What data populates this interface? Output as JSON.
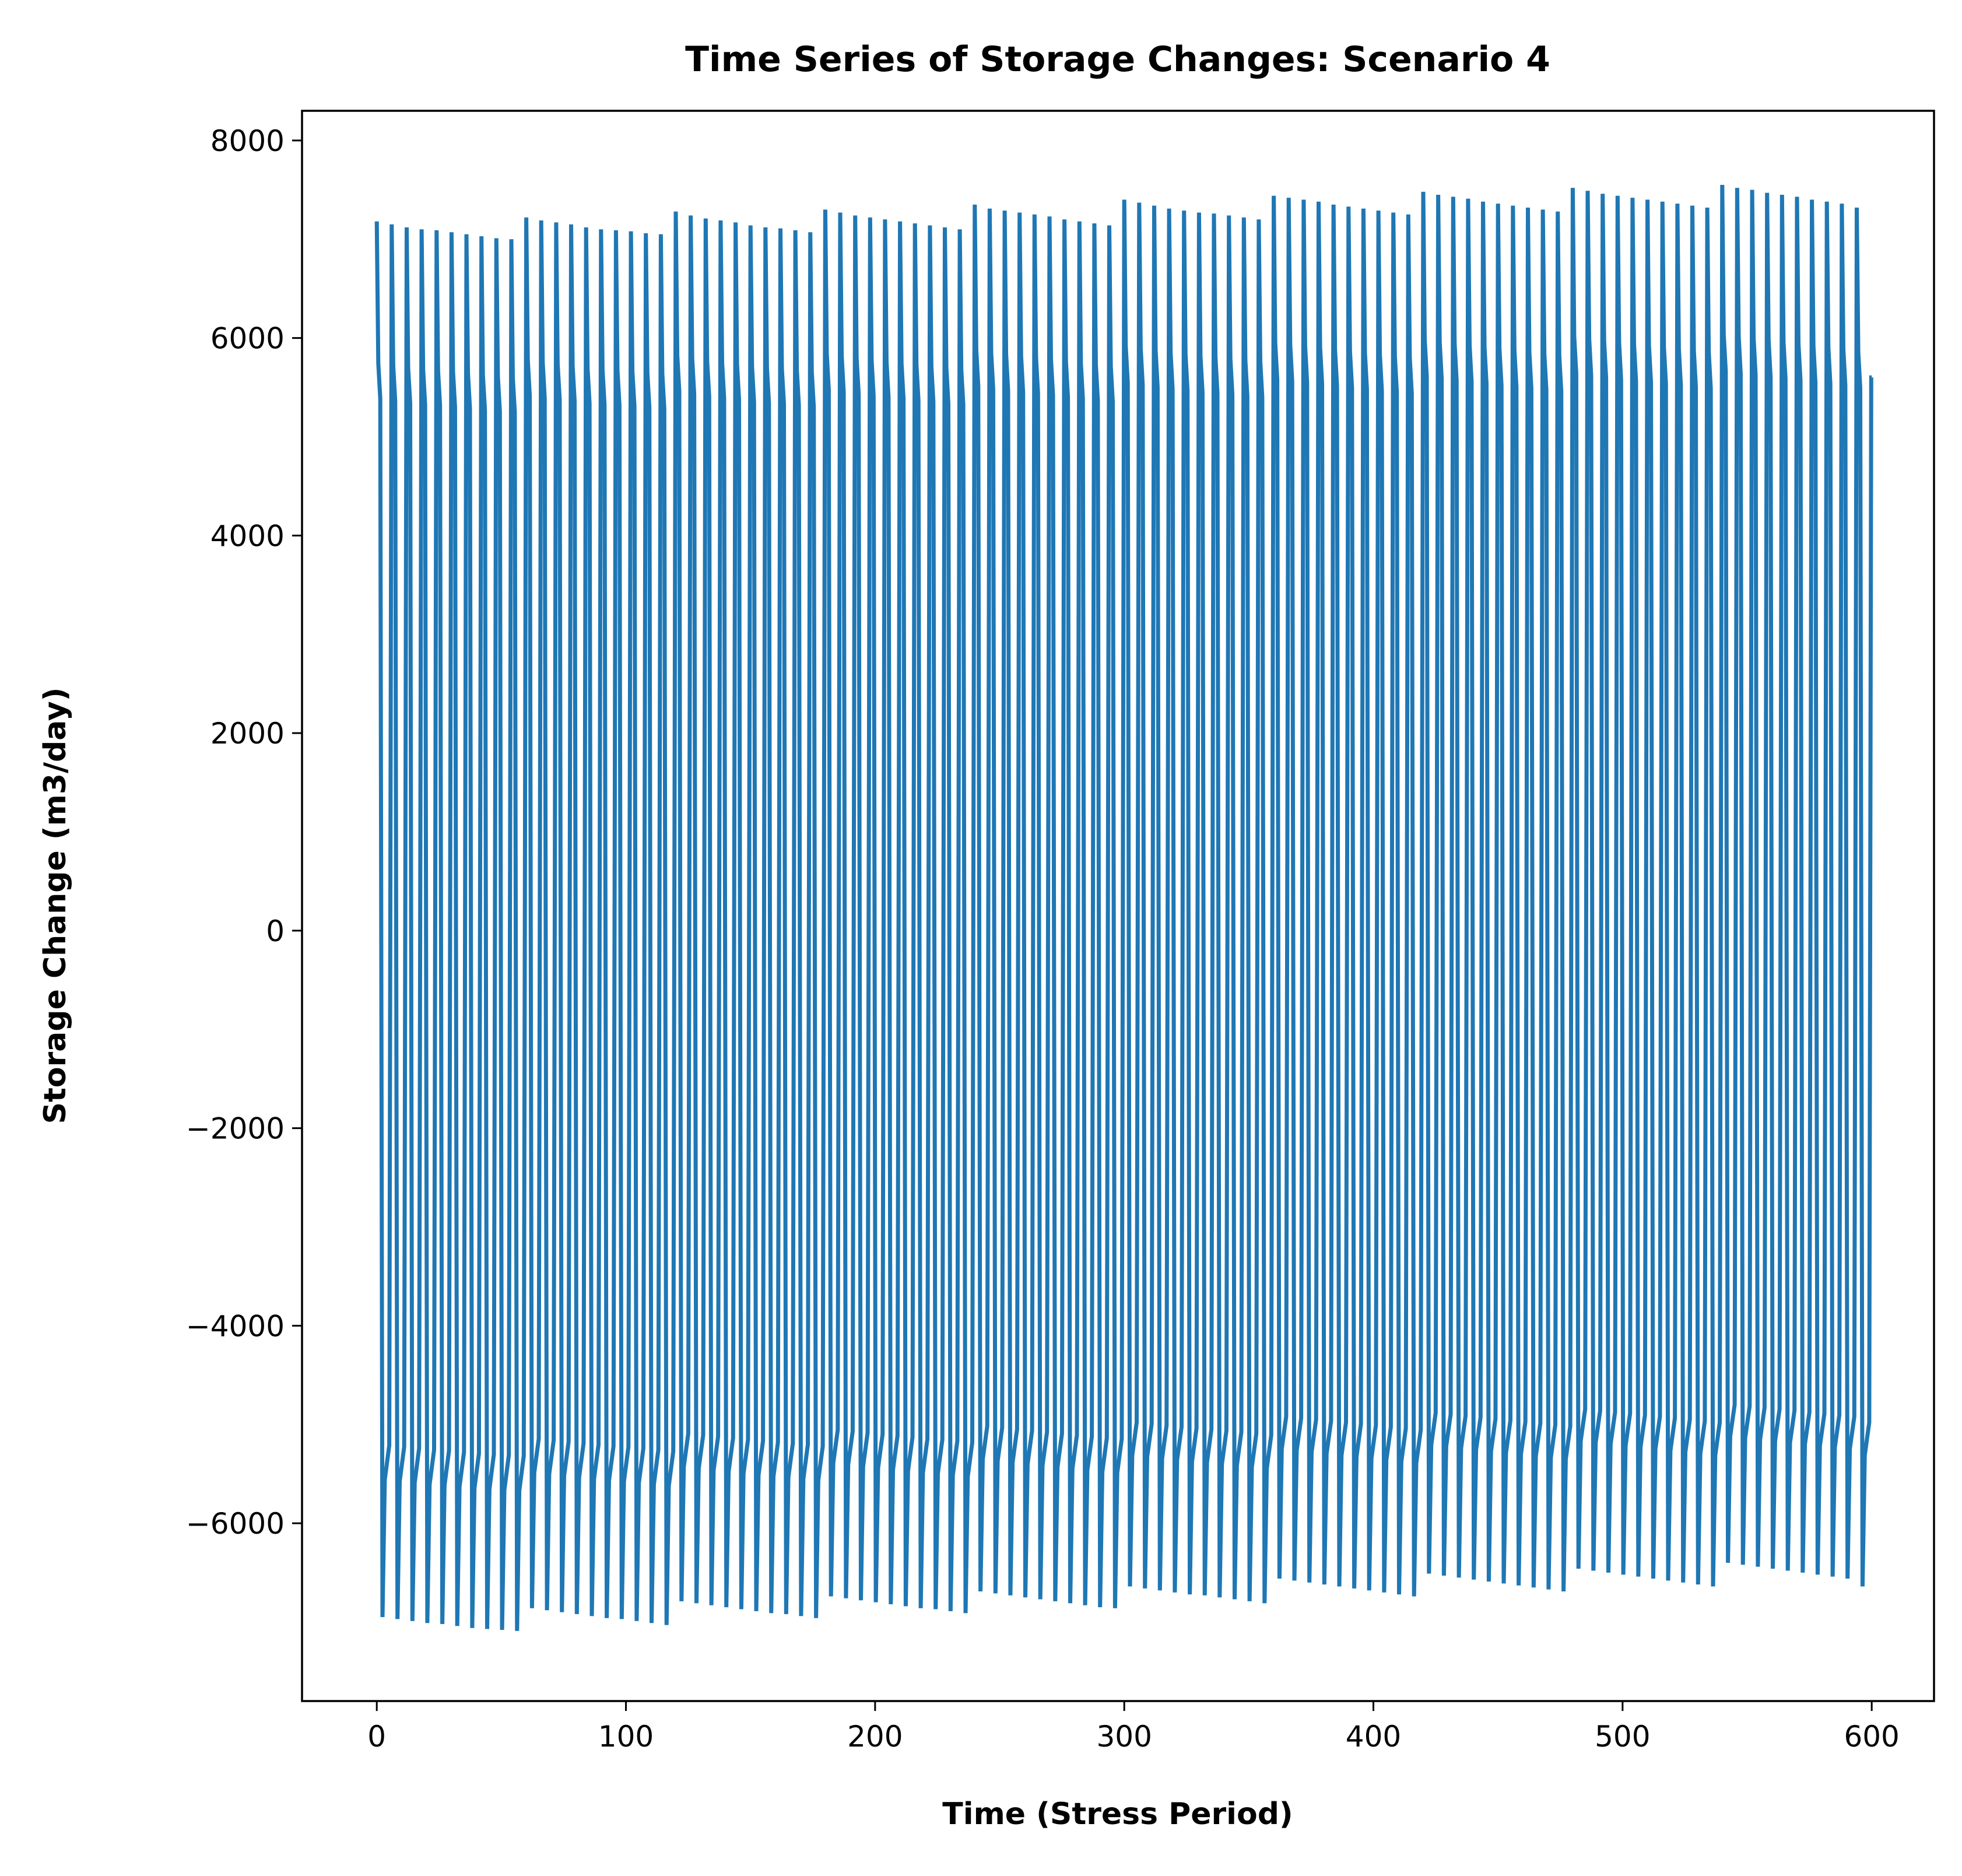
{
  "chart_data": {
    "type": "line",
    "title": "Time Series of Storage Changes: Scenario 4",
    "xlabel": "Time (Stress Period)",
    "ylabel": "Storage Change (m3/day)",
    "xlim": [
      -30,
      625
    ],
    "ylim": [
      -7800,
      8300
    ],
    "xticks": [
      0,
      100,
      200,
      300,
      400,
      500,
      600
    ],
    "xtick_labels": [
      "0",
      "100",
      "200",
      "300",
      "400",
      "500",
      "600"
    ],
    "yticks": [
      -6000,
      -4000,
      -2000,
      0,
      2000,
      4000,
      6000,
      8000
    ],
    "ytick_labels": [
      "−6000",
      "−4000",
      "−2000",
      "0",
      "2000",
      "4000",
      "6000",
      "8000"
    ],
    "grid": false,
    "series_color": "#1f77b4",
    "series": [
      {
        "period_length": 6,
        "n_periods": 600,
        "cycle_start_x": [
          0,
          6,
          12,
          18,
          24,
          30,
          36,
          42,
          48,
          54,
          60,
          66,
          72,
          78,
          84,
          90,
          96,
          102,
          108,
          114,
          120,
          126,
          132,
          138,
          144,
          150,
          156,
          162,
          168,
          174,
          180,
          186,
          192,
          198,
          204,
          210,
          216,
          222,
          228,
          234,
          240,
          246,
          252,
          258,
          264,
          270,
          276,
          282,
          288,
          294,
          300,
          306,
          312,
          318,
          324,
          330,
          336,
          342,
          348,
          354,
          360,
          366,
          372,
          378,
          384,
          390,
          396,
          402,
          408,
          414,
          420,
          426,
          432,
          438,
          444,
          450,
          456,
          462,
          468,
          474,
          480,
          486,
          492,
          498,
          504,
          510,
          516,
          522,
          528,
          534,
          540,
          546,
          552,
          558,
          564,
          570,
          576,
          582,
          588,
          594
        ],
        "cycle_peak": [
          7180,
          7150,
          7120,
          7100,
          7090,
          7070,
          7050,
          7030,
          7010,
          7000,
          7220,
          7190,
          7170,
          7150,
          7120,
          7100,
          7090,
          7080,
          7060,
          7050,
          7280,
          7240,
          7210,
          7190,
          7170,
          7140,
          7120,
          7110,
          7090,
          7070,
          7300,
          7270,
          7240,
          7220,
          7200,
          7180,
          7160,
          7140,
          7120,
          7100,
          7350,
          7310,
          7290,
          7270,
          7250,
          7230,
          7200,
          7180,
          7160,
          7140,
          7400,
          7370,
          7340,
          7310,
          7290,
          7270,
          7260,
          7240,
          7220,
          7200,
          7440,
          7420,
          7400,
          7380,
          7350,
          7330,
          7310,
          7290,
          7270,
          7250,
          7480,
          7450,
          7430,
          7410,
          7380,
          7360,
          7340,
          7320,
          7300,
          7280,
          7520,
          7490,
          7460,
          7440,
          7420,
          7400,
          7380,
          7360,
          7340,
          7320,
          7550,
          7520,
          7500,
          7470,
          7450,
          7430,
          7400,
          7380,
          7360,
          7320
        ],
        "cycle_trough": [
          -6950,
          -6970,
          -6990,
          -7010,
          -7020,
          -7040,
          -7060,
          -7070,
          -7080,
          -7090,
          -6860,
          -6880,
          -6900,
          -6920,
          -6940,
          -6960,
          -6970,
          -6990,
          -7010,
          -7030,
          -6790,
          -6810,
          -6830,
          -6850,
          -6870,
          -6890,
          -6910,
          -6920,
          -6940,
          -6960,
          -6740,
          -6760,
          -6780,
          -6800,
          -6820,
          -6840,
          -6860,
          -6870,
          -6890,
          -6910,
          -6690,
          -6710,
          -6730,
          -6750,
          -6770,
          -6790,
          -6810,
          -6830,
          -6850,
          -6860,
          -6640,
          -6660,
          -6680,
          -6700,
          -6720,
          -6730,
          -6750,
          -6770,
          -6790,
          -6810,
          -6560,
          -6580,
          -6600,
          -6620,
          -6640,
          -6660,
          -6680,
          -6700,
          -6720,
          -6740,
          -6510,
          -6530,
          -6550,
          -6570,
          -6590,
          -6610,
          -6630,
          -6650,
          -6670,
          -6690,
          -6460,
          -6480,
          -6500,
          -6520,
          -6540,
          -6560,
          -6580,
          -6600,
          -6620,
          -6640,
          -6400,
          -6420,
          -6440,
          -6460,
          -6480,
          -6500,
          -6520,
          -6540,
          -6560,
          -6640
        ],
        "final_value": 5600
      }
    ]
  }
}
